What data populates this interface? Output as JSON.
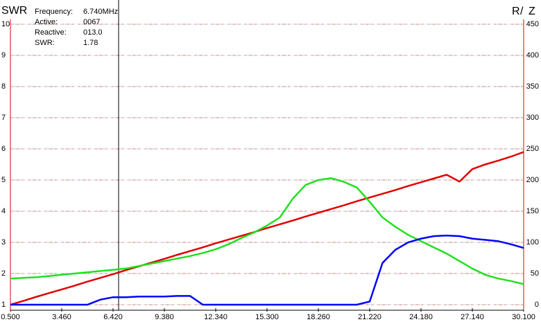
{
  "chart_data": {
    "type": "line",
    "title": "SWR",
    "y2_title_parts": [
      {
        "text": "R",
        "color": "#00c000"
      },
      {
        "text": "/",
        "color": "#000000"
      },
      {
        "text": "Z",
        "color": "#0000ff"
      }
    ],
    "readout": [
      {
        "label": "Frequency:",
        "value": "6.740MHz"
      },
      {
        "label": "Active:",
        "value": "0067"
      },
      {
        "label": "Reactive:",
        "value": "013.0"
      },
      {
        "label": "SWR:",
        "value": "1.78"
      }
    ],
    "cursor_x": 6.74,
    "x": [
      0.5,
      1.24,
      1.98,
      2.72,
      3.46,
      4.2,
      4.94,
      5.68,
      6.42,
      7.16,
      7.9,
      8.64,
      9.38,
      10.12,
      10.86,
      11.6,
      12.34,
      13.08,
      13.82,
      14.56,
      15.3,
      16.04,
      16.78,
      17.52,
      18.26,
      19.0,
      19.74,
      20.48,
      21.22,
      21.96,
      22.7,
      23.44,
      24.18,
      24.92,
      25.66,
      26.4,
      27.14,
      27.88,
      28.62,
      29.36,
      30.1
    ],
    "xlim": [
      0.5,
      30.1
    ],
    "xticks": [
      {
        "value": 0.5,
        "label": "0.500"
      },
      {
        "value": 3.46,
        "label": "3.460"
      },
      {
        "value": 6.42,
        "label": "6.420"
      },
      {
        "value": 9.38,
        "label": "9.380"
      },
      {
        "value": 12.34,
        "label": "12.340"
      },
      {
        "value": 15.3,
        "label": "15.300"
      },
      {
        "value": 18.26,
        "label": "18.260"
      },
      {
        "value": 21.22,
        "label": "21.220"
      },
      {
        "value": 24.18,
        "label": "24.180"
      },
      {
        "value": 27.14,
        "label": "27.140"
      },
      {
        "value": 30.1,
        "label": "30.100"
      }
    ],
    "ylim": [
      1,
      10
    ],
    "yticks": [
      1,
      2,
      3,
      4,
      5,
      6,
      7,
      8,
      9,
      10
    ],
    "y2lim": [
      0,
      450
    ],
    "y2ticks": [
      0,
      50,
      100,
      150,
      200,
      250,
      300,
      350,
      400,
      450
    ],
    "grid": true,
    "series": [
      {
        "name": "SWR",
        "color": "#e00000",
        "values": [
          1.0,
          1.12,
          1.25,
          1.37,
          1.49,
          1.61,
          1.74,
          1.86,
          1.98,
          2.11,
          2.23,
          2.35,
          2.47,
          2.6,
          2.72,
          2.84,
          2.97,
          3.09,
          3.21,
          3.33,
          3.46,
          3.58,
          3.7,
          3.83,
          3.95,
          4.07,
          4.19,
          4.32,
          4.44,
          4.56,
          4.68,
          4.81,
          4.93,
          5.05,
          5.17,
          4.95,
          5.35,
          5.5,
          5.62,
          5.75,
          5.9
        ]
      },
      {
        "name": "R",
        "color": "#20e020",
        "axis": "y2",
        "values": [
          42,
          43,
          44,
          46,
          48,
          50,
          52,
          54,
          56,
          58,
          62,
          66,
          70,
          74,
          78,
          83,
          89,
          97,
          107,
          116,
          127,
          140,
          170,
          192,
          200,
          203,
          197,
          188,
          165,
          140,
          125,
          112,
          102,
          92,
          82,
          70,
          58,
          48,
          42,
          38,
          33
        ]
      },
      {
        "name": "Z",
        "color": "#0000ff",
        "axis": "y2",
        "values": [
          0,
          0,
          0,
          0,
          0,
          0,
          0,
          8,
          12,
          12,
          13,
          13,
          13,
          14,
          14,
          0,
          0,
          0,
          0,
          0,
          0,
          0,
          0,
          0,
          0,
          0,
          0,
          0,
          5,
          67,
          88,
          100,
          106,
          110,
          111,
          110,
          106,
          104,
          102,
          97,
          91
        ]
      }
    ]
  }
}
